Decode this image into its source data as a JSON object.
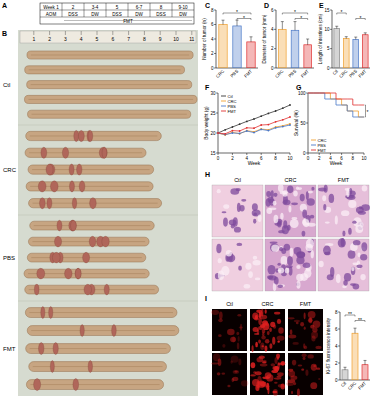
{
  "panel_labels": [
    "A",
    "B",
    "C",
    "D",
    "E",
    "F",
    "G",
    "H",
    "I"
  ],
  "timeline": {
    "weeks": [
      "Week 1",
      "2",
      "3-4",
      "5",
      "6-7",
      "8",
      "9-10"
    ],
    "treatments": [
      "AOM",
      "DSS",
      "DW",
      "DSS",
      "DW",
      "DSS",
      "DW"
    ],
    "fmt": "FMT"
  },
  "photos": {
    "ruler": [
      1,
      2,
      3,
      4,
      5,
      6,
      7,
      8,
      9,
      10,
      11
    ],
    "groups": [
      "Ctl",
      "CRC",
      "PBS",
      "FMT"
    ]
  },
  "histology": {
    "groups": [
      "Ctl",
      "CRC",
      "FMT"
    ]
  },
  "fluorescence": {
    "groups": [
      "Ctl",
      "CRC",
      "FMT"
    ]
  },
  "chart_data": [
    {
      "type": "bar",
      "y_label": "Number of tumor (n)",
      "categories": [
        "CRC",
        "PBS",
        "FMT"
      ],
      "values": [
        6,
        5.8,
        3.6
      ],
      "errors": [
        0.6,
        0.8,
        0.7
      ],
      "colors": [
        "#f0a030",
        "#4a78c8",
        "#e03030"
      ],
      "ylim": [
        0,
        8
      ],
      "yticks": [
        0,
        2,
        4,
        6,
        8
      ],
      "annotations": [
        {
          "text": "*",
          "between": [
            "CRC",
            "FMT"
          ]
        },
        {
          "text": "*",
          "between": [
            "PBS",
            "FMT"
          ]
        }
      ]
    },
    {
      "type": "bar",
      "y_label": "Diameter of tumor (mm)",
      "categories": [
        "CRC",
        "PBS",
        "FMT"
      ],
      "values": [
        4,
        3.9,
        2.4
      ],
      "errors": [
        0.8,
        0.9,
        0.6
      ],
      "colors": [
        "#f0a030",
        "#4a78c8",
        "#e03030"
      ],
      "ylim": [
        0,
        6
      ],
      "yticks": [
        0,
        2,
        4,
        6
      ],
      "annotations": [
        {
          "text": "*",
          "between": [
            "CRC",
            "FMT"
          ]
        },
        {
          "text": "*",
          "between": [
            "PBS",
            "FMT"
          ]
        }
      ]
    },
    {
      "type": "bar",
      "y_label": "Length of intestines (cm)",
      "categories": [
        "Ctl",
        "CRC",
        "PBS",
        "FMT"
      ],
      "values": [
        10.2,
        7.6,
        7.4,
        8.6
      ],
      "errors": [
        0.6,
        0.5,
        0.6,
        0.5
      ],
      "colors": [
        "#888888",
        "#f0a030",
        "#4a78c8",
        "#e03030"
      ],
      "ylim": [
        0,
        15
      ],
      "yticks": [
        0,
        5,
        10,
        15
      ],
      "annotations": [
        {
          "text": "*",
          "between": [
            "Ctl",
            "CRC"
          ]
        },
        {
          "text": "*",
          "between": [
            "PBS",
            "FMT"
          ]
        }
      ]
    },
    {
      "type": "line",
      "x": [
        0,
        1,
        2,
        3,
        4,
        5,
        6,
        7,
        8,
        9,
        10
      ],
      "xlim": [
        0,
        10
      ],
      "xticks": [
        0,
        2,
        4,
        6,
        8,
        10
      ],
      "ylim": [
        15,
        30
      ],
      "yticks": [
        15,
        20,
        25,
        30
      ],
      "x_label": "Week",
      "y_label": "Body weight (g)",
      "legend": "upper left",
      "series": [
        {
          "name": "Ctl",
          "color": "#333333",
          "marker": "circle",
          "values": [
            20,
            20.8,
            21.5,
            22.2,
            22.9,
            23.5,
            24.2,
            24.9,
            25.5,
            26.2,
            27
          ]
        },
        {
          "name": "CRC",
          "color": "#f0a030",
          "marker": "circle",
          "values": [
            20,
            19.5,
            20.2,
            19.8,
            20.6,
            20.3,
            21,
            20.8,
            21.5,
            21.8,
            22.3
          ]
        },
        {
          "name": "PBS",
          "color": "#4a78c8",
          "marker": "circle",
          "values": [
            20,
            19.6,
            20,
            19.9,
            20.5,
            20.1,
            20.9,
            20.6,
            21.3,
            21.6,
            22
          ]
        },
        {
          "name": "FMT",
          "color": "#e03030",
          "marker": "circle",
          "values": [
            20,
            19.8,
            20.6,
            20.5,
            21.3,
            21.2,
            22,
            22.1,
            22.8,
            23.3,
            24
          ]
        }
      ]
    },
    {
      "type": "line",
      "x": [
        0,
        1,
        2,
        3,
        4,
        5,
        6,
        7,
        8,
        9,
        10
      ],
      "xlim": [
        0,
        10
      ],
      "xticks": [
        0,
        2,
        4,
        6,
        8,
        10
      ],
      "ylim": [
        0,
        100
      ],
      "yticks": [
        0,
        50,
        100
      ],
      "x_label": "Week",
      "y_label": "Survival (%)",
      "legend": "lower left",
      "annotations": [
        {
          "text": "*",
          "between": [
            "CRC",
            "FMT"
          ]
        }
      ],
      "series": [
        {
          "name": "CRC",
          "color": "#f0a030",
          "line_style": "step",
          "values": [
            100,
            100,
            100,
            100,
            90,
            90,
            80,
            70,
            70,
            60,
            60
          ]
        },
        {
          "name": "PBS",
          "color": "#4a78c8",
          "line_style": "step",
          "values": [
            100,
            100,
            100,
            90,
            90,
            80,
            80,
            70,
            60,
            60,
            60
          ]
        },
        {
          "name": "FMT",
          "color": "#e03030",
          "line_style": "step",
          "values": [
            100,
            100,
            100,
            100,
            100,
            90,
            90,
            90,
            80,
            80,
            80
          ]
        }
      ]
    },
    {
      "type": "bar",
      "y_label": "Ki-67 fluorescence intensity",
      "categories": [
        "Ctl",
        "CRC",
        "FMT"
      ],
      "values": [
        1.2,
        5.5,
        1.8
      ],
      "errors": [
        0.3,
        0.6,
        0.5
      ],
      "colors": [
        "#888888",
        "#f0a030",
        "#e03030"
      ],
      "ylim": [
        0,
        8
      ],
      "yticks": [
        0,
        2,
        4,
        6,
        8
      ],
      "annotations": [
        {
          "text": "**",
          "between": [
            "Ctl",
            "CRC"
          ]
        },
        {
          "text": "**",
          "between": [
            "CRC",
            "FMT"
          ]
        }
      ]
    }
  ]
}
